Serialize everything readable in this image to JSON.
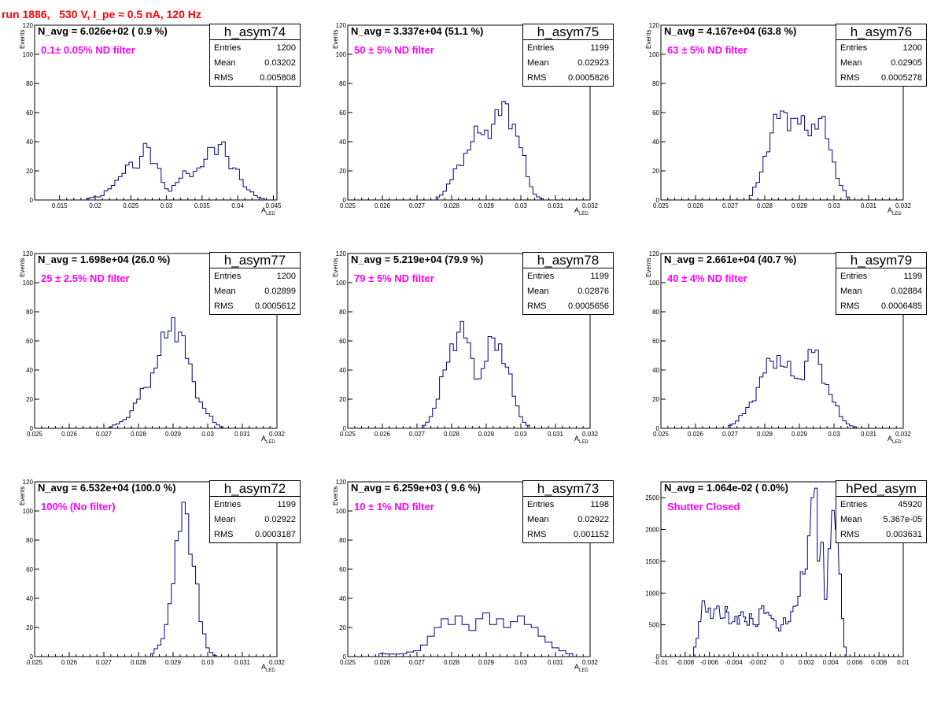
{
  "title": "run 1886,   530 V, I_pe ≈ 0.5 nA, 120 Hz",
  "colors": {
    "title": "#ff0000",
    "filter_label": "#ff00ff",
    "histogram": "#000080"
  },
  "chart_data": [
    {
      "type": "histogram",
      "name": "h_asym74",
      "n_avg": "N_avg = 6.026e+02 ( 0.9 %)",
      "filter": "0.1± 0.05% ND filter",
      "stats": {
        "entries": "1200",
        "mean": "0.03202",
        "rms": "0.005808"
      },
      "xlabel": "A",
      "xlabel_sub": "LED",
      "ylabel": "Events",
      "xlim": [
        0.0115,
        0.0455
      ],
      "ylim": [
        0,
        120
      ],
      "xticks": [
        "0.015",
        "0.02",
        "0.025",
        "0.03",
        "0.035",
        "0.04",
        "0.045"
      ],
      "xtick_values": [
        0.015,
        0.02,
        0.025,
        0.03,
        0.035,
        0.04,
        0.045
      ],
      "yticks": [
        "0",
        "20",
        "40",
        "60",
        "80",
        "100",
        "120"
      ],
      "ytick_values": [
        0,
        20,
        40,
        60,
        80,
        100,
        120
      ],
      "peaks": [
        [
          0.019,
          1
        ],
        [
          0.021,
          3
        ],
        [
          0.0225,
          10
        ],
        [
          0.0235,
          16
        ],
        [
          0.0245,
          24
        ],
        [
          0.0255,
          22
        ],
        [
          0.0265,
          30
        ],
        [
          0.0275,
          36
        ],
        [
          0.0285,
          25
        ],
        [
          0.0295,
          12
        ],
        [
          0.0305,
          6
        ],
        [
          0.0315,
          12
        ],
        [
          0.0325,
          20
        ],
        [
          0.0335,
          16
        ],
        [
          0.0345,
          22
        ],
        [
          0.0355,
          28
        ],
        [
          0.0365,
          36
        ],
        [
          0.0375,
          38
        ],
        [
          0.0385,
          30
        ],
        [
          0.0395,
          22
        ],
        [
          0.0405,
          14
        ],
        [
          0.0415,
          7
        ],
        [
          0.0425,
          3
        ],
        [
          0.0435,
          1
        ]
      ],
      "bin_width": 0.0005
    },
    {
      "type": "histogram",
      "name": "h_asym75",
      "n_avg": "N_avg = 3.337e+04 (51.1 %)",
      "filter": "50 ± 5% ND filter",
      "stats": {
        "entries": "1199",
        "mean": "0.02923",
        "rms": "0.0005826"
      },
      "xlabel": "A",
      "xlabel_sub": "LED",
      "ylabel": "Events",
      "xlim": [
        0.025,
        0.032
      ],
      "ylim": [
        0,
        120
      ],
      "xticks": [
        "0.025",
        "0.026",
        "0.027",
        "0.028",
        "0.029",
        "0.03",
        "0.031",
        "0.032"
      ],
      "xtick_values": [
        0.025,
        0.026,
        0.027,
        0.028,
        0.029,
        0.03,
        0.031,
        0.032
      ],
      "yticks": [
        "0",
        "20",
        "40",
        "60",
        "80",
        "100",
        "120"
      ],
      "ytick_values": [
        0,
        20,
        40,
        60,
        80,
        100,
        120
      ],
      "peaks": [
        [
          0.0276,
          2
        ],
        [
          0.0278,
          6
        ],
        [
          0.028,
          14
        ],
        [
          0.0282,
          24
        ],
        [
          0.0284,
          32
        ],
        [
          0.0286,
          40
        ],
        [
          0.0288,
          46
        ],
        [
          0.029,
          48
        ],
        [
          0.0292,
          52
        ],
        [
          0.0294,
          58
        ],
        [
          0.0296,
          66
        ],
        [
          0.0298,
          52
        ],
        [
          0.03,
          36
        ],
        [
          0.0302,
          16
        ],
        [
          0.0304,
          4
        ],
        [
          0.0306,
          1
        ]
      ],
      "bin_width": 0.0001
    },
    {
      "type": "histogram",
      "name": "h_asym76",
      "n_avg": "N_avg = 4.167e+04 (63.8 %)",
      "filter": "63 ± 5% ND filter",
      "stats": {
        "entries": "1200",
        "mean": "0.02905",
        "rms": "0.0005278"
      },
      "xlabel": "A",
      "xlabel_sub": "LED",
      "ylabel": "Events",
      "xlim": [
        0.025,
        0.032
      ],
      "ylim": [
        0,
        120
      ],
      "xticks": [
        "0.025",
        "0.026",
        "0.027",
        "0.028",
        "0.029",
        "0.03",
        "0.031",
        "0.032"
      ],
      "xtick_values": [
        0.025,
        0.026,
        0.027,
        0.028,
        0.029,
        0.03,
        0.031,
        0.032
      ],
      "yticks": [
        "0",
        "20",
        "40",
        "60",
        "80",
        "100",
        "120"
      ],
      "ytick_values": [
        0,
        20,
        40,
        60,
        80,
        100,
        120
      ],
      "peaks": [
        [
          0.0276,
          3
        ],
        [
          0.0278,
          12
        ],
        [
          0.028,
          30
        ],
        [
          0.0282,
          46
        ],
        [
          0.0284,
          56
        ],
        [
          0.0286,
          60
        ],
        [
          0.0288,
          56
        ],
        [
          0.029,
          52
        ],
        [
          0.0292,
          48
        ],
        [
          0.0294,
          52
        ],
        [
          0.0296,
          56
        ],
        [
          0.0298,
          42
        ],
        [
          0.03,
          26
        ],
        [
          0.0302,
          10
        ],
        [
          0.0304,
          2
        ]
      ],
      "bin_width": 0.0001
    },
    {
      "type": "histogram",
      "name": "h_asym77",
      "n_avg": "N_avg = 1.698e+04 (26.0 %)",
      "filter": "25 ± 2.5% ND filter",
      "stats": {
        "entries": "1200",
        "mean": "0.02899",
        "rms": "0.0005612"
      },
      "xlabel": "A",
      "xlabel_sub": "LED",
      "ylabel": "Events",
      "xlim": [
        0.025,
        0.032
      ],
      "ylim": [
        0,
        120
      ],
      "xticks": [
        "0.025",
        "0.026",
        "0.027",
        "0.028",
        "0.029",
        "0.03",
        "0.031",
        "0.032"
      ],
      "xtick_values": [
        0.025,
        0.026,
        0.027,
        0.028,
        0.029,
        0.03,
        0.031,
        0.032
      ],
      "yticks": [
        "0",
        "20",
        "40",
        "60",
        "80",
        "100",
        "120"
      ],
      "ytick_values": [
        0,
        20,
        40,
        60,
        80,
        100,
        120
      ],
      "peaks": [
        [
          0.0272,
          1
        ],
        [
          0.0274,
          3
        ],
        [
          0.0276,
          6
        ],
        [
          0.0278,
          12
        ],
        [
          0.028,
          20
        ],
        [
          0.0282,
          28
        ],
        [
          0.0284,
          38
        ],
        [
          0.0286,
          50
        ],
        [
          0.0288,
          62
        ],
        [
          0.029,
          76
        ],
        [
          0.0292,
          66
        ],
        [
          0.0294,
          48
        ],
        [
          0.0296,
          32
        ],
        [
          0.0298,
          18
        ],
        [
          0.03,
          10
        ],
        [
          0.0302,
          4
        ],
        [
          0.0304,
          1
        ]
      ],
      "bin_width": 0.0001
    },
    {
      "type": "histogram",
      "name": "h_asym78",
      "n_avg": "N_avg = 5.219e+04 (79.9 %)",
      "filter": "79 ± 5% ND filter",
      "stats": {
        "entries": "1199",
        "mean": "0.02876",
        "rms": "0.0005656"
      },
      "xlabel": "A",
      "xlabel_sub": "LED",
      "ylabel": "Events",
      "xlim": [
        0.025,
        0.032
      ],
      "ylim": [
        0,
        120
      ],
      "xticks": [
        "0.025",
        "0.026",
        "0.027",
        "0.028",
        "0.029",
        "0.03",
        "0.031",
        "0.032"
      ],
      "xtick_values": [
        0.025,
        0.026,
        0.027,
        0.028,
        0.029,
        0.03,
        0.031,
        0.032
      ],
      "yticks": [
        "0",
        "20",
        "40",
        "60",
        "80",
        "100",
        "120"
      ],
      "ytick_values": [
        0,
        20,
        40,
        60,
        80,
        100,
        120
      ],
      "peaks": [
        [
          0.0272,
          2
        ],
        [
          0.0274,
          8
        ],
        [
          0.0276,
          20
        ],
        [
          0.0278,
          40
        ],
        [
          0.028,
          58
        ],
        [
          0.0282,
          66
        ],
        [
          0.0284,
          62
        ],
        [
          0.0286,
          48
        ],
        [
          0.0288,
          34
        ],
        [
          0.029,
          46
        ],
        [
          0.0292,
          62
        ],
        [
          0.0294,
          58
        ],
        [
          0.0296,
          42
        ],
        [
          0.0298,
          22
        ],
        [
          0.03,
          8
        ],
        [
          0.0302,
          2
        ]
      ],
      "bin_width": 0.0001
    },
    {
      "type": "histogram",
      "name": "h_asym79",
      "n_avg": "N_avg = 2.661e+04 (40.7 %)",
      "filter": "40 ± 4% ND filter",
      "stats": {
        "entries": "1199",
        "mean": "0.02884",
        "rms": "0.0006485"
      },
      "xlabel": "A",
      "xlabel_sub": "LED",
      "ylabel": "Events",
      "xlim": [
        0.025,
        0.032
      ],
      "ylim": [
        0,
        120
      ],
      "xticks": [
        "0.025",
        "0.026",
        "0.027",
        "0.028",
        "0.029",
        "0.03",
        "0.031",
        "0.032"
      ],
      "xtick_values": [
        0.025,
        0.026,
        0.027,
        0.028,
        0.029,
        0.03,
        0.031,
        0.032
      ],
      "yticks": [
        "0",
        "20",
        "40",
        "60",
        "80",
        "100",
        "120"
      ],
      "ytick_values": [
        0,
        20,
        40,
        60,
        80,
        100,
        120
      ],
      "peaks": [
        [
          0.027,
          2
        ],
        [
          0.0272,
          5
        ],
        [
          0.0274,
          10
        ],
        [
          0.0276,
          18
        ],
        [
          0.0278,
          28
        ],
        [
          0.028,
          38
        ],
        [
          0.0282,
          46
        ],
        [
          0.0284,
          50
        ],
        [
          0.0286,
          42
        ],
        [
          0.0288,
          36
        ],
        [
          0.029,
          34
        ],
        [
          0.0292,
          46
        ],
        [
          0.0294,
          52
        ],
        [
          0.0296,
          44
        ],
        [
          0.0298,
          30
        ],
        [
          0.03,
          18
        ],
        [
          0.0302,
          8
        ],
        [
          0.0304,
          3
        ],
        [
          0.0306,
          1
        ]
      ],
      "bin_width": 0.0001
    },
    {
      "type": "histogram",
      "name": "h_asym72",
      "n_avg": "N_avg = 6.532e+04 (100.0 %)",
      "filter": "100% (No filter)",
      "stats": {
        "entries": "1199",
        "mean": "0.02922",
        "rms": "0.0003187"
      },
      "xlabel": "A",
      "xlabel_sub": "LED",
      "ylabel": "Events",
      "xlim": [
        0.025,
        0.032
      ],
      "ylim": [
        0,
        120
      ],
      "xticks": [
        "0.025",
        "0.026",
        "0.027",
        "0.028",
        "0.029",
        "0.03",
        "0.031",
        "0.032"
      ],
      "xtick_values": [
        0.025,
        0.026,
        0.027,
        0.028,
        0.029,
        0.03,
        0.031,
        0.032
      ],
      "yticks": [
        "0",
        "20",
        "40",
        "60",
        "80",
        "100",
        "120"
      ],
      "ytick_values": [
        0,
        20,
        40,
        60,
        80,
        100,
        120
      ],
      "peaks": [
        [
          0.0284,
          2
        ],
        [
          0.0286,
          8
        ],
        [
          0.0288,
          22
        ],
        [
          0.029,
          50
        ],
        [
          0.0292,
          86
        ],
        [
          0.0293,
          106
        ],
        [
          0.0294,
          98
        ],
        [
          0.0296,
          62
        ],
        [
          0.0298,
          24
        ],
        [
          0.03,
          6
        ],
        [
          0.0302,
          1
        ]
      ],
      "bin_width": 0.0001
    },
    {
      "type": "histogram",
      "name": "h_asym73",
      "n_avg": "N_avg = 6.259e+03 ( 9.6 %)",
      "filter": "10 ± 1% ND filter",
      "stats": {
        "entries": "1198",
        "mean": "0.02922",
        "rms": "0.001152"
      },
      "xlabel": "A",
      "xlabel_sub": "LED",
      "ylabel": "Events",
      "xlim": [
        0.025,
        0.032
      ],
      "ylim": [
        0,
        120
      ],
      "xticks": [
        "0.025",
        "0.026",
        "0.027",
        "0.028",
        "0.029",
        "0.03",
        "0.031",
        "0.032"
      ],
      "xtick_values": [
        0.025,
        0.026,
        0.027,
        0.028,
        0.029,
        0.03,
        0.031,
        0.032
      ],
      "yticks": [
        "0",
        "20",
        "40",
        "60",
        "80",
        "100",
        "120"
      ],
      "ytick_values": [
        0,
        20,
        40,
        60,
        80,
        100,
        120
      ],
      "peaks": [
        [
          0.026,
          2
        ],
        [
          0.0266,
          2
        ],
        [
          0.027,
          4
        ],
        [
          0.0272,
          8
        ],
        [
          0.0274,
          14
        ],
        [
          0.0276,
          20
        ],
        [
          0.0278,
          26
        ],
        [
          0.028,
          22
        ],
        [
          0.0282,
          28
        ],
        [
          0.0284,
          22
        ],
        [
          0.0286,
          18
        ],
        [
          0.0288,
          26
        ],
        [
          0.029,
          30
        ],
        [
          0.0292,
          22
        ],
        [
          0.0294,
          26
        ],
        [
          0.0296,
          20
        ],
        [
          0.0298,
          24
        ],
        [
          0.03,
          28
        ],
        [
          0.0302,
          22
        ],
        [
          0.0304,
          20
        ],
        [
          0.0306,
          14
        ],
        [
          0.0308,
          10
        ],
        [
          0.031,
          6
        ],
        [
          0.0312,
          4
        ],
        [
          0.0314,
          2
        ]
      ],
      "bin_width": 0.0002
    },
    {
      "type": "histogram",
      "name": "hPed_asym",
      "n_avg": "N_avg = 1.064e-02 ( 0.0%)",
      "filter": "Shutter Closed",
      "stats": {
        "entries": "45920",
        "mean": "5.367e-05",
        "rms": "0.003631"
      },
      "xlabel": "",
      "xlabel_sub": "",
      "ylabel": "",
      "xlim": [
        -0.01,
        0.01
      ],
      "ylim": [
        0,
        2750
      ],
      "xticks": [
        "-0.01",
        "-0.008",
        "-0.006",
        "-0.004",
        "-0.002",
        "0",
        "0.002",
        "0.004",
        "0.006",
        "0.008",
        "0.01"
      ],
      "xtick_values": [
        -0.01,
        -0.008,
        -0.006,
        -0.004,
        -0.002,
        0,
        0.002,
        0.004,
        0.006,
        0.008,
        0.01
      ],
      "yticks": [
        "0",
        "500",
        "1000",
        "1500",
        "2000",
        "2500"
      ],
      "ytick_values": [
        0,
        500,
        1000,
        1500,
        2000,
        2500
      ],
      "peaks": [
        [
          -0.0072,
          150
        ],
        [
          -0.0068,
          550
        ],
        [
          -0.0065,
          880
        ],
        [
          -0.0062,
          700
        ],
        [
          -0.0058,
          600
        ],
        [
          -0.0055,
          750
        ],
        [
          -0.005,
          600
        ],
        [
          -0.0045,
          700
        ],
        [
          -0.004,
          550
        ],
        [
          -0.0035,
          650
        ],
        [
          -0.003,
          550
        ],
        [
          -0.0025,
          600
        ],
        [
          -0.002,
          500
        ],
        [
          -0.0016,
          800
        ],
        [
          -0.0012,
          700
        ],
        [
          -0.0008,
          600
        ],
        [
          -0.0004,
          450
        ],
        [
          0.0,
          500
        ],
        [
          0.0006,
          550
        ],
        [
          0.0012,
          800
        ],
        [
          0.0018,
          1300
        ],
        [
          0.0022,
          1900
        ],
        [
          0.0025,
          2500
        ],
        [
          0.0028,
          2650
        ],
        [
          0.003,
          1500
        ],
        [
          0.0033,
          1800
        ],
        [
          0.0036,
          900
        ],
        [
          0.0039,
          1700
        ],
        [
          0.0042,
          2300
        ],
        [
          0.0045,
          2000
        ],
        [
          0.0048,
          1300
        ],
        [
          0.005,
          600
        ],
        [
          0.0052,
          150
        ]
      ],
      "bin_width": 0.0002
    }
  ]
}
